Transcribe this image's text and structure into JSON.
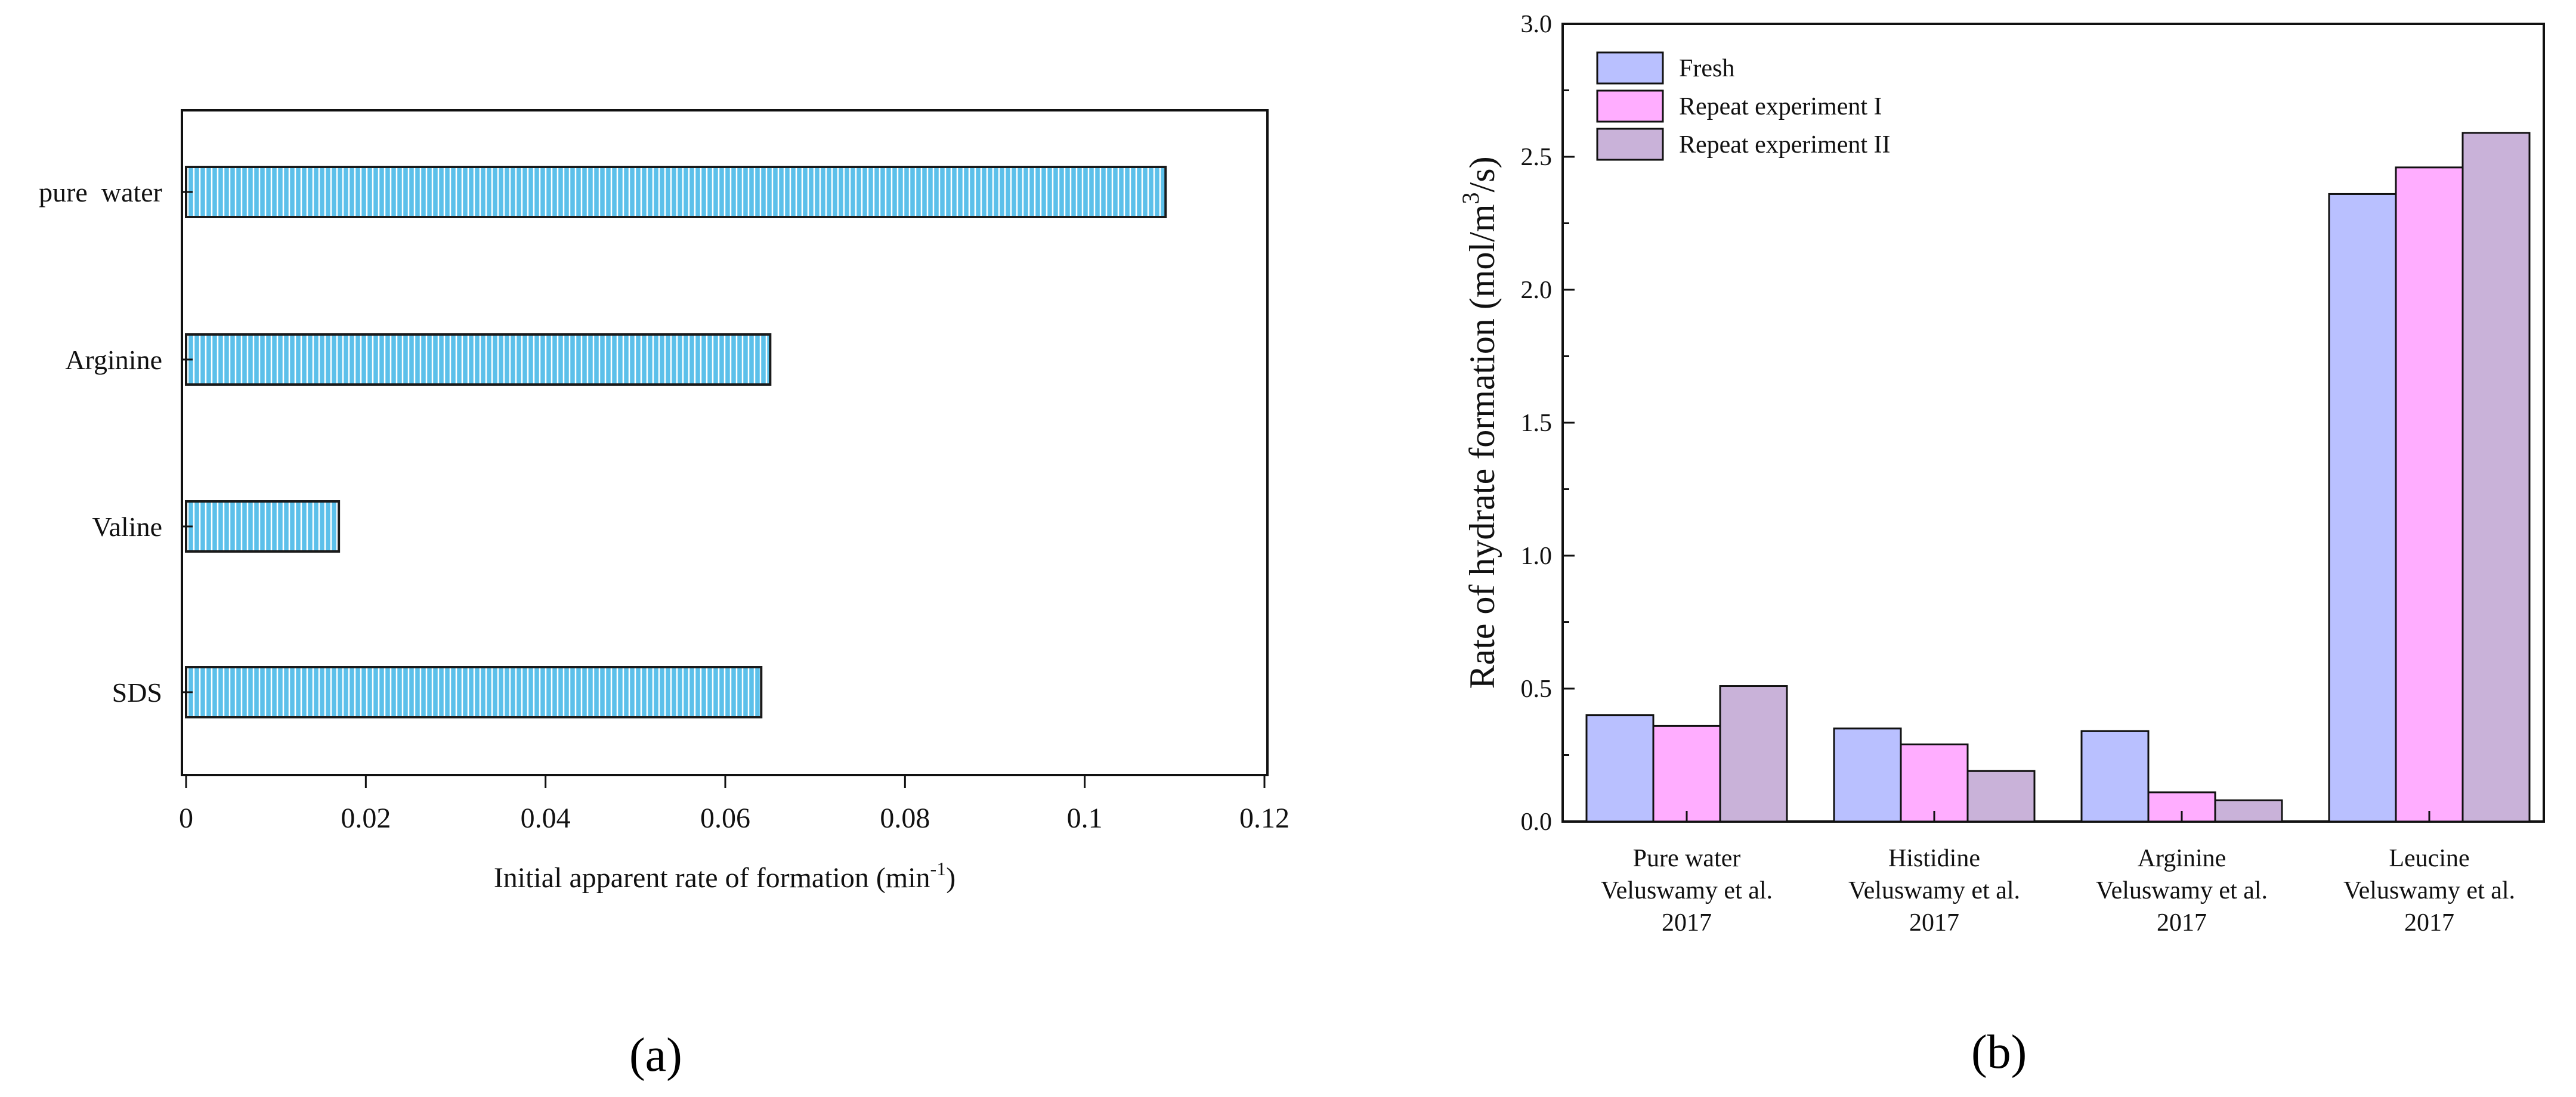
{
  "panels": {
    "a": "(a)",
    "b": "(b)"
  },
  "chart_data": [
    {
      "type": "bar",
      "orientation": "horizontal",
      "categories": [
        "pure  water",
        "Arginine",
        "Valine",
        "SDS"
      ],
      "values": [
        0.109,
        0.065,
        0.017,
        0.064
      ],
      "xlim": [
        0,
        0.12
      ],
      "xticks": [
        "0",
        "0.02",
        "0.04",
        "0.06",
        "0.08",
        "0.1",
        "0.12"
      ],
      "xlabel": "Initial apparent rate of formation (min",
      "xlabel_sup": "-1",
      "xlabel_end": ")",
      "grid": false,
      "bar_fill": "#5cc0ea",
      "bar_hatch": "vertical lines",
      "bar_edge": "#1a1a1a"
    },
    {
      "type": "bar",
      "categories": [
        [
          "Pure water",
          "Veluswamy et al.",
          "2017"
        ],
        [
          "Histidine",
          "Veluswamy et al.",
          "2017"
        ],
        [
          "Arginine",
          "Veluswamy et al.",
          "2017"
        ],
        [
          "Leucine",
          "Veluswamy et al.",
          "2017"
        ]
      ],
      "series": [
        {
          "name": "Fresh",
          "color": "#b9c0ff",
          "values": [
            0.4,
            0.35,
            0.34,
            2.36
          ]
        },
        {
          "name": "Repeat experiment I",
          "color": "#ffadff",
          "values": [
            0.36,
            0.29,
            0.11,
            2.46
          ]
        },
        {
          "name": "Repeat experiment II",
          "color": "#c9b2d9",
          "values": [
            0.51,
            0.19,
            0.08,
            2.59
          ]
        }
      ],
      "ylim": [
        0,
        3.0
      ],
      "yticks": [
        "0.0",
        "0.5",
        "1.0",
        "1.5",
        "2.0",
        "2.5",
        "3.0"
      ],
      "ylabel": "Rate of hydrate formation (mol/m",
      "ylabel_sup": "3",
      "ylabel_end": "/s)",
      "legend": "top-left",
      "grid": false
    }
  ]
}
